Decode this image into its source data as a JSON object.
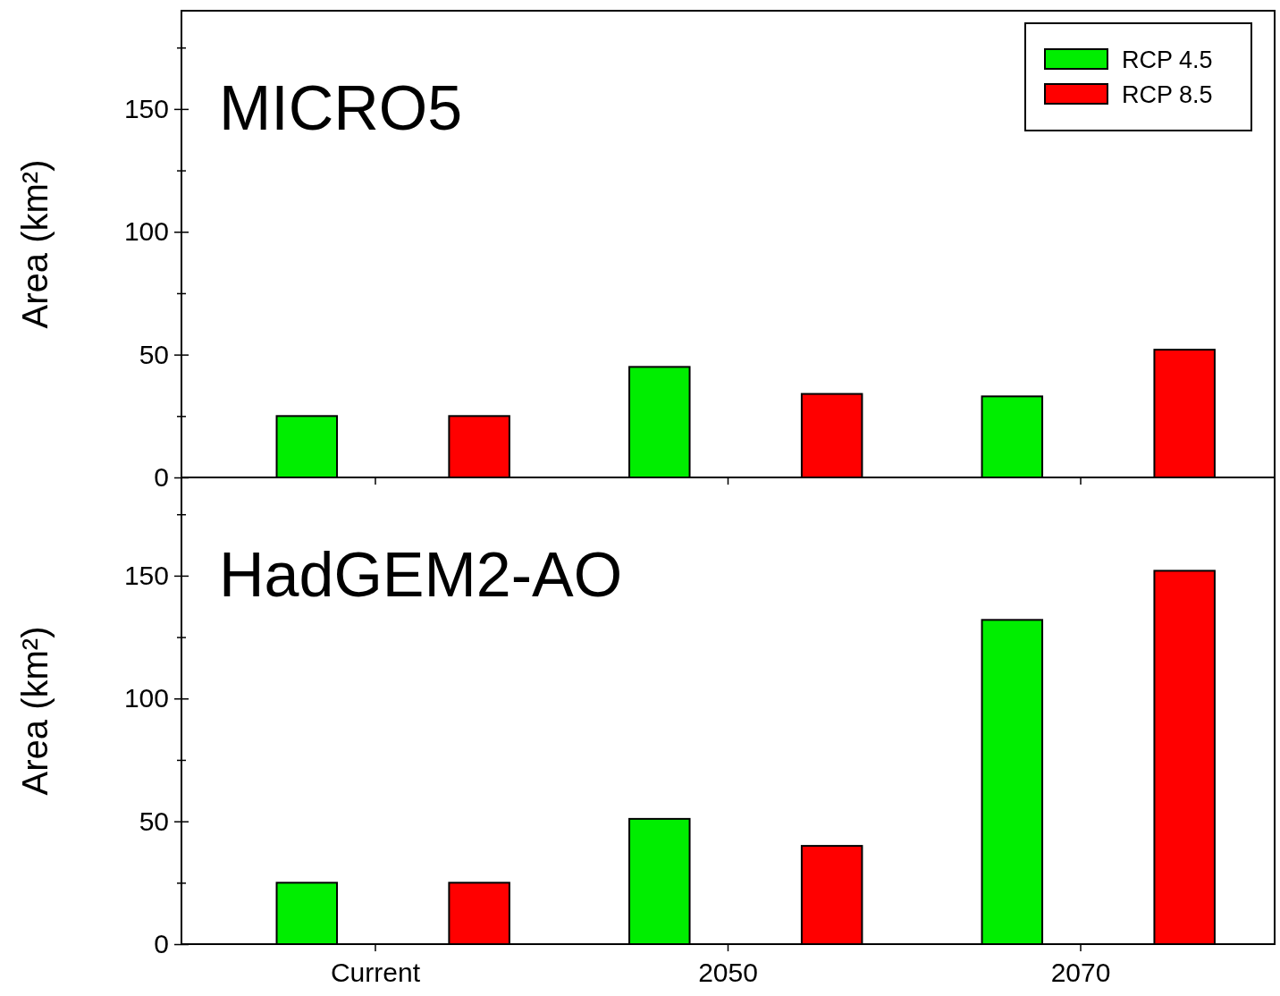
{
  "chart_data": [
    {
      "type": "bar",
      "title": "MICRO5",
      "ylabel": "Area (km²)",
      "categories": [
        null,
        null,
        null
      ],
      "series": [
        {
          "name": "RCP 4.5",
          "color": "#00ee00",
          "values": [
            25,
            45,
            33
          ]
        },
        {
          "name": "RCP 8.5",
          "color": "#ff0000",
          "values": [
            25,
            34,
            52
          ]
        }
      ],
      "ylim": [
        0,
        190
      ],
      "yticks": [
        0,
        {
          "value": 25,
          "label": null
        },
        50,
        {
          "value": 75,
          "label": null
        },
        100,
        {
          "value": 125,
          "label": null
        },
        150,
        {
          "value": 175,
          "label": null
        }
      ],
      "legend": "top right",
      "tick_labels": "y"
    },
    {
      "type": "bar",
      "title": "HadGEM2-AO",
      "ylabel": "Area (km²)",
      "categories": [
        "Current",
        "2050",
        "2070"
      ],
      "series": [
        {
          "color": "#00ee00",
          "values": [
            25,
            51,
            132
          ]
        },
        {
          "color": "#ff0000",
          "values": [
            25,
            40,
            152
          ]
        }
      ],
      "ylim": [
        0,
        190
      ],
      "yticks": [
        0,
        {
          "value": 25,
          "label": null
        },
        50,
        {
          "value": 75,
          "label": null
        },
        100,
        {
          "value": 125,
          "label": null
        },
        150,
        {
          "value": 175,
          "label": null
        }
      ]
    }
  ]
}
